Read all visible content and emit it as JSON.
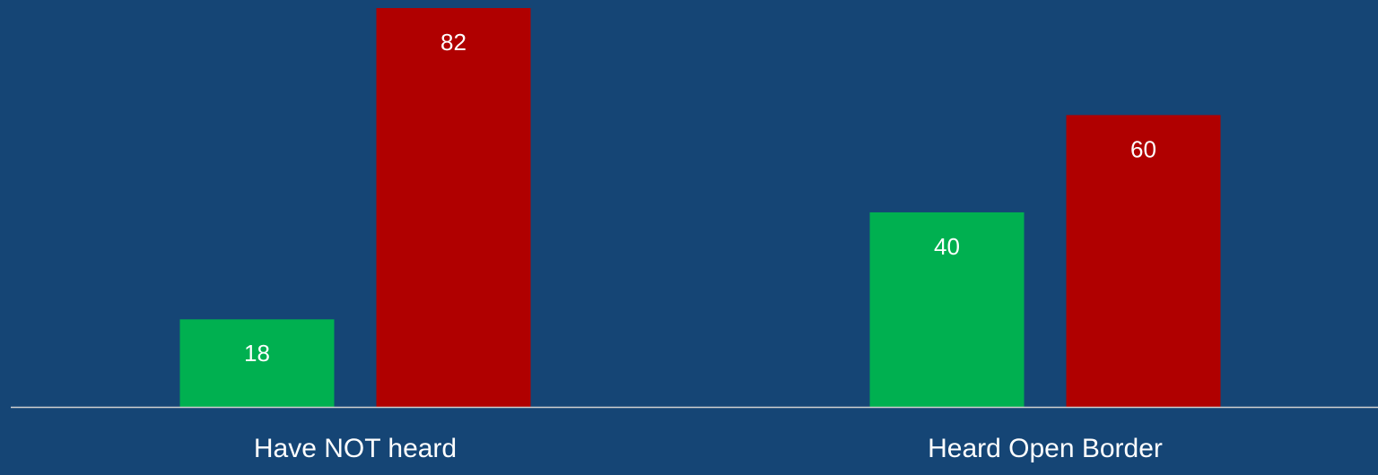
{
  "chart_data": {
    "type": "bar",
    "categories": [
      "Have NOT heard",
      "Heard Open Border"
    ],
    "series": [
      {
        "color": "#00b050",
        "values": [
          18,
          40
        ]
      },
      {
        "color": "#b00000",
        "values": [
          82,
          60
        ]
      }
    ]
  }
}
